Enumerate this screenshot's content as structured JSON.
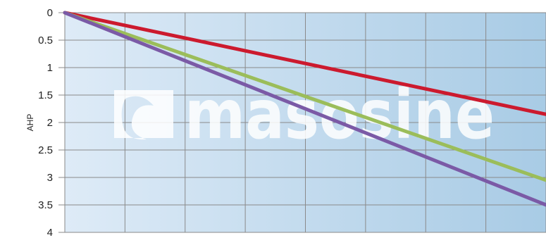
{
  "chart_data": {
    "type": "line",
    "ylabel": "AHP",
    "xlabel": "",
    "y_axis_inverted": true,
    "ylim": [
      0,
      4
    ],
    "yticks": [
      "0",
      "0.5",
      "1",
      "1.5",
      "2",
      "2.5",
      "3",
      "3.5",
      "4"
    ],
    "x_gridlines": 8,
    "grid": true,
    "background": "blue gradient (light left to darker right)",
    "watermark": "masosine",
    "series": [
      {
        "color": "#cc1a2e",
        "x": [
          0,
          1
        ],
        "y": [
          0,
          1.85
        ]
      },
      {
        "color": "#9bbd5a",
        "x": [
          0,
          1
        ],
        "y": [
          0,
          3.05
        ]
      },
      {
        "color": "#7b5aa6",
        "x": [
          0,
          1
        ],
        "y": [
          0,
          3.5
        ]
      }
    ]
  }
}
